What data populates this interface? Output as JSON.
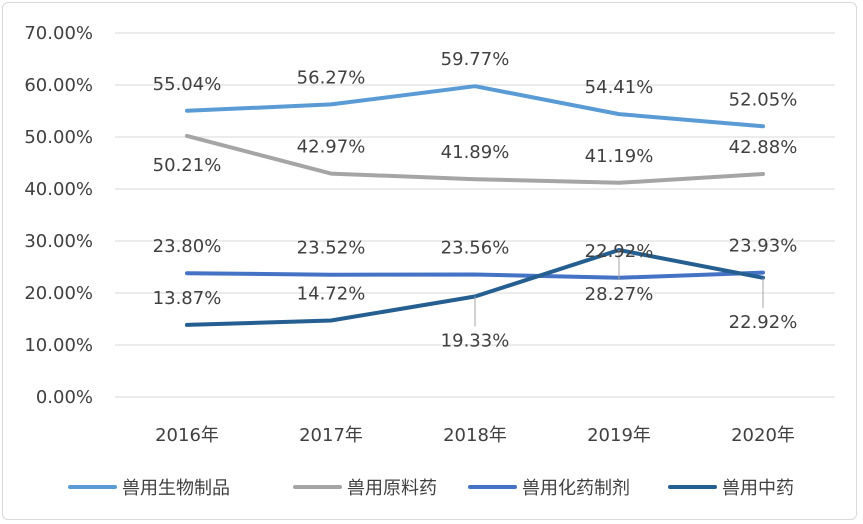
{
  "chart_data": {
    "type": "line",
    "categories": [
      "2016年",
      "2017年",
      "2018年",
      "2019年",
      "2020年"
    ],
    "ylim": [
      0,
      70
    ],
    "yticks": [
      "0.00%",
      "10.00%",
      "20.00%",
      "30.00%",
      "40.00%",
      "50.00%",
      "60.00%",
      "70.00%"
    ],
    "grid": true,
    "legend": "bottom",
    "series": [
      {
        "name": "兽用生物制品",
        "color": "#5B9BD5",
        "values": [
          55.04,
          56.27,
          59.77,
          54.41,
          52.05
        ],
        "labels": [
          "55.04%",
          "56.27%",
          "59.77%",
          "54.41%",
          "52.05%"
        ]
      },
      {
        "name": "兽用原料药",
        "color": "#A5A5A5",
        "values": [
          50.21,
          42.97,
          41.89,
          41.19,
          42.88
        ],
        "labels": [
          "50.21%",
          "42.97%",
          "41.89%",
          "41.19%",
          "42.88%"
        ]
      },
      {
        "name": "兽用化药制剂",
        "color": "#4472C4",
        "values": [
          23.8,
          23.52,
          23.56,
          22.92,
          23.93
        ],
        "labels": [
          "23.80%",
          "23.52%",
          "23.56%",
          "22.92%",
          "23.93%"
        ]
      },
      {
        "name": "兽用中药",
        "color": "#255E91",
        "values": [
          13.87,
          14.72,
          19.33,
          28.27,
          22.92
        ],
        "labels": [
          "13.87%",
          "14.72%",
          "19.33%",
          "28.27%",
          "22.92%"
        ]
      }
    ]
  }
}
